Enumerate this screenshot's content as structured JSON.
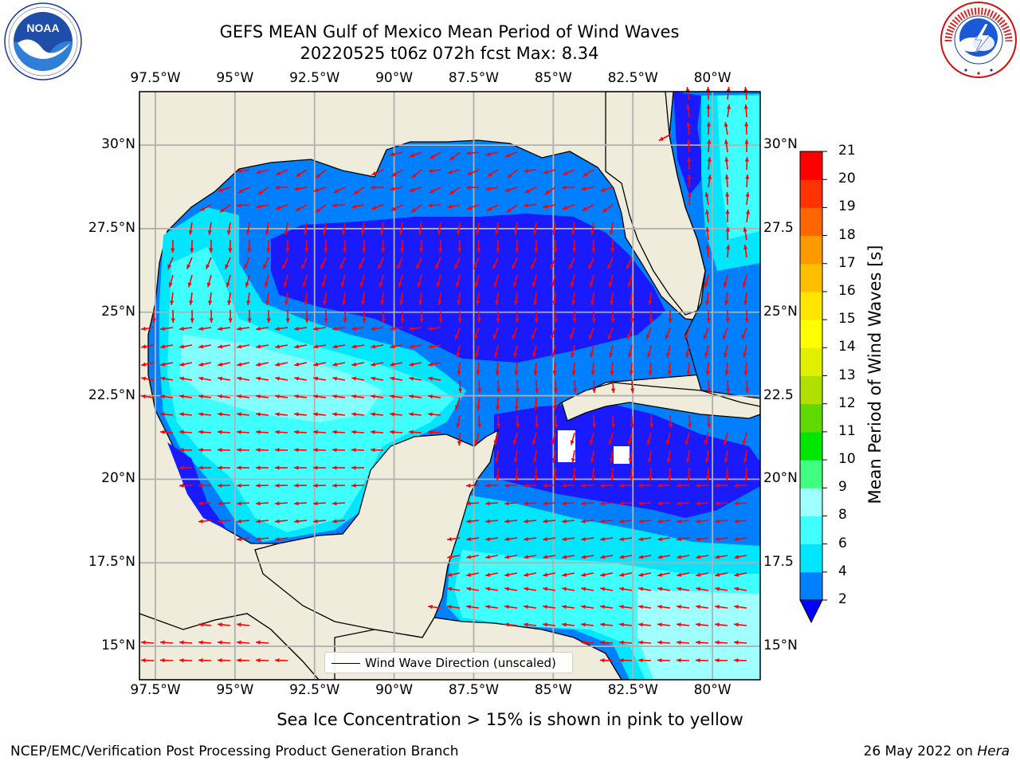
{
  "title": {
    "line1": "GEFS MEAN Gulf of Mexico Mean Period of Wind Waves",
    "line2": "20220525 t06z 072h fcst   Max: 8.34"
  },
  "logos": {
    "left": "noaa-logo",
    "right": "national-weather-service-logo"
  },
  "axes": {
    "lon_ticks": [
      "97.5°W",
      "95°W",
      "92.5°W",
      "90°W",
      "87.5°W",
      "85°W",
      "82.5°W",
      "80°W"
    ],
    "lat_ticks_left": [
      "30°N",
      "27.5°N",
      "25°N",
      "22.5°N",
      "20°N",
      "17.5°N",
      "15°N"
    ],
    "lat_ticks_right": [
      "30°N",
      "27.5",
      "25°N",
      "22.5",
      "20°N",
      "17.5",
      "15°N"
    ],
    "lon_range": [
      -98,
      -78.5
    ],
    "lat_range": [
      14,
      31.6
    ],
    "grid": true
  },
  "legend": {
    "label": "Wind Wave Direction (unscaled)"
  },
  "colorbar": {
    "label": "Mean Period of Wind Waves [s]",
    "levels": [
      "2",
      "4",
      "6",
      "8",
      "9",
      "10",
      "11",
      "12",
      "13",
      "14",
      "15",
      "16",
      "17",
      "18",
      "19",
      "20",
      "21"
    ],
    "colors": [
      "#1a1aff",
      "#0080ff",
      "#00e6ff",
      "#40ffff",
      "#a0ffff",
      "#40ff80",
      "#00e600",
      "#60d900",
      "#b0e000",
      "#e0f000",
      "#ffff00",
      "#ffe600",
      "#ffbf00",
      "#ff9900",
      "#ff6600",
      "#ff3300",
      "#ff0000"
    ],
    "under_color": "#0000ff"
  },
  "colors": {
    "land": "#efecdc",
    "arrow": "#ff0000",
    "grid": "#b0b0b0"
  },
  "footer": {
    "sea_ice_note": "Sea Ice Concentration > 15% is shown in pink to yellow",
    "credit": "NCEP/EMC/Verification Post Processing Product Generation Branch",
    "date": "26 May 2022 on",
    "machine": "Hera"
  }
}
